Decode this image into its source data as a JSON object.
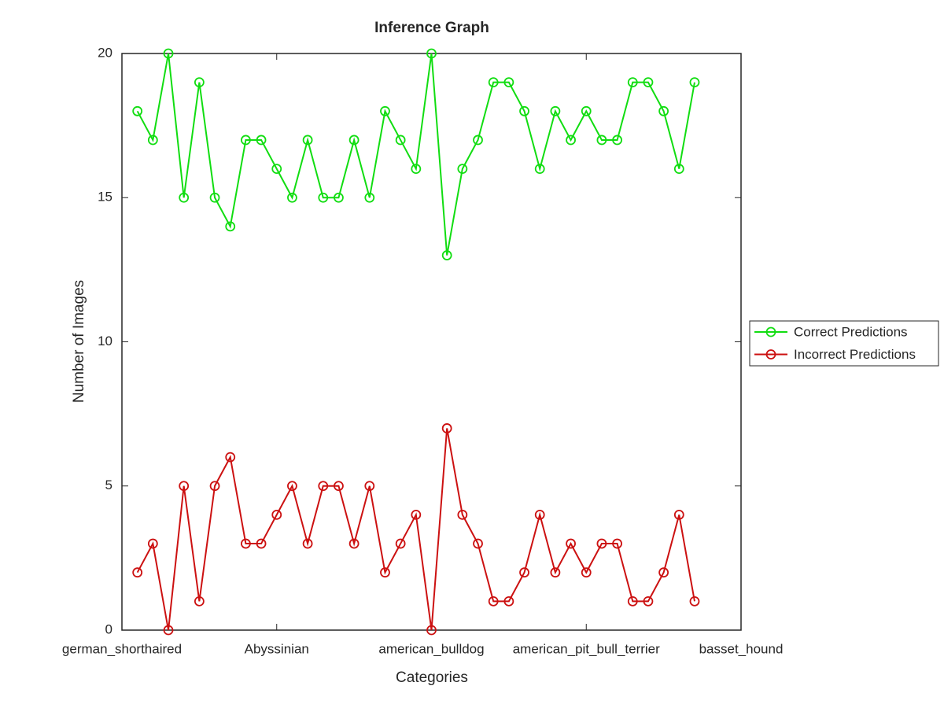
{
  "chart_data": {
    "type": "line",
    "title": "Inference Graph",
    "xlabel": "Categories",
    "ylabel": "Number of Images",
    "x": [
      1,
      2,
      3,
      4,
      5,
      6,
      7,
      8,
      9,
      10,
      11,
      12,
      13,
      14,
      15,
      16,
      17,
      18,
      19,
      20,
      21,
      22,
      23,
      24,
      25,
      26,
      27,
      28,
      29,
      30,
      31,
      32,
      33,
      34,
      35,
      36,
      37
    ],
    "series": [
      {
        "name": "Correct Predictions",
        "color": "#11dd11",
        "marker": "circle",
        "values": [
          18,
          17,
          20,
          15,
          19,
          15,
          14,
          17,
          17,
          16,
          15,
          17,
          15,
          15,
          17,
          15,
          18,
          17,
          16,
          20,
          13,
          16,
          17,
          19,
          19,
          18,
          16,
          18,
          17,
          18,
          17,
          17,
          19,
          19,
          18,
          16,
          19
        ]
      },
      {
        "name": "Incorrect Predictions",
        "color": "#cc1111",
        "marker": "circle",
        "values": [
          2,
          3,
          0,
          5,
          1,
          5,
          6,
          3,
          3,
          4,
          5,
          3,
          5,
          5,
          3,
          5,
          2,
          3,
          4,
          0,
          7,
          4,
          3,
          1,
          1,
          2,
          4,
          2,
          3,
          2,
          3,
          3,
          1,
          1,
          2,
          4,
          1
        ]
      }
    ],
    "xlim": [
      0,
      40
    ],
    "xticks": [
      {
        "value": 0,
        "label": "german_shorthaired"
      },
      {
        "value": 10,
        "label": "Abyssinian"
      },
      {
        "value": 20,
        "label": "american_bulldog"
      },
      {
        "value": 30,
        "label": "american_pit_bull_terrier"
      },
      {
        "value": 40,
        "label": "basset_hound"
      }
    ],
    "ylim": [
      0,
      20
    ],
    "yticks": [
      0,
      5,
      10,
      15,
      20
    ],
    "grid": false,
    "legend": "outside-right"
  }
}
